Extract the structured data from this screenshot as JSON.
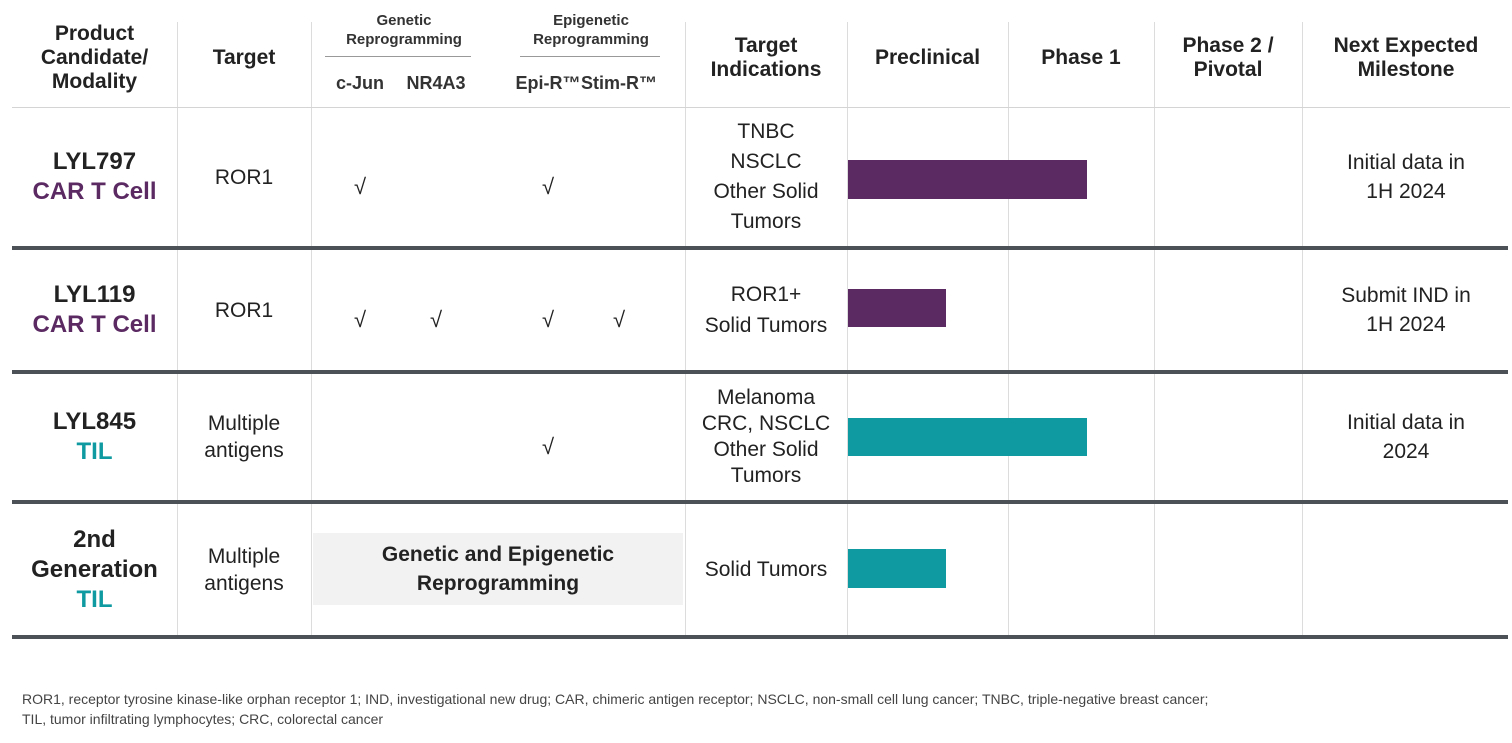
{
  "header": {
    "product": [
      "Product",
      "Candidate/",
      "Modality"
    ],
    "target": [
      "Target"
    ],
    "genetic": [
      "Genetic",
      "Reprogramming"
    ],
    "epigenetic": [
      "Epigenetic",
      "Reprogramming"
    ],
    "sub": [
      "c-Jun",
      "NR4A3",
      "Epi-R™",
      "Stim-R™"
    ],
    "indications": [
      "Target",
      "Indications"
    ],
    "preclinical": [
      "Preclinical"
    ],
    "phase1": [
      "Phase 1"
    ],
    "phase2": [
      "Phase 2 /",
      "Pivotal"
    ],
    "milestone": [
      "Next Expected",
      "Milestone"
    ]
  },
  "rows": [
    {
      "name": [
        "LYL797"
      ],
      "modality": [
        "CAR T Cell"
      ],
      "target": [
        "ROR1"
      ],
      "checks": [
        "√",
        null,
        "√",
        null
      ],
      "indications": [
        "TNBC",
        "NSCLC",
        "Other Solid",
        "Tumors"
      ],
      "milestone": [
        "Initial data in",
        "1H 2024"
      ]
    },
    {
      "name": [
        "LYL119"
      ],
      "modality": [
        "CAR T Cell"
      ],
      "target": [
        "ROR1"
      ],
      "checks": [
        "√",
        "√",
        "√",
        "√"
      ],
      "indications": [
        "ROR1+",
        "Solid Tumors"
      ],
      "milestone": [
        "Submit IND in",
        "1H 2024"
      ]
    },
    {
      "name": [
        "LYL845"
      ],
      "modality": [
        "TIL"
      ],
      "target": [
        "Multiple",
        "antigens"
      ],
      "checks": [
        null,
        null,
        "√",
        null
      ],
      "indications": [
        "Melanoma",
        "CRC, NSCLC",
        "Other Solid",
        "Tumors"
      ],
      "milestone": [
        "Initial data in",
        "2024"
      ]
    },
    {
      "name": [
        "2nd",
        "Generation"
      ],
      "modality": [
        "TIL"
      ],
      "target": [
        "Multiple",
        "antigens"
      ],
      "reprogramming": [
        "Genetic and Epigenetic",
        "Reprogramming"
      ],
      "indications": [
        "Solid Tumors"
      ]
    }
  ],
  "footnote": [
    "ROR1, receptor tyrosine kinase-like orphan receptor 1; IND,  investigational new drug; CAR, chimeric antigen receptor; NSCLC, non-small cell lung cancer; TNBC, triple-negative breast cancer;",
    "TIL, tumor infiltrating lymphocytes; CRC, colorectal cancer"
  ]
}
